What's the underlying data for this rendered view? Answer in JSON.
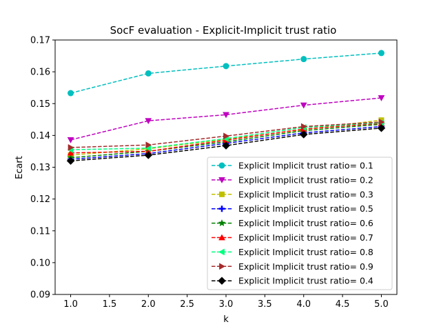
{
  "chart_data": {
    "type": "line",
    "title": "SocF evaluation - Explicit-Implicit trust ratio",
    "xlabel": "k",
    "ylabel": "Ecart",
    "xlim": [
      0.8,
      5.2
    ],
    "ylim": [
      0.09,
      0.17
    ],
    "xticks": [
      "1.0",
      "1.5",
      "2.0",
      "2.5",
      "3.0",
      "3.5",
      "4.0",
      "4.5",
      "5.0"
    ],
    "yticks": [
      "0.09",
      "0.10",
      "0.11",
      "0.12",
      "0.13",
      "0.14",
      "0.15",
      "0.16",
      "0.17"
    ],
    "grid": false,
    "legend_position": "lower-right",
    "x": [
      1.0,
      2.0,
      3.0,
      4.0,
      5.0
    ],
    "series": [
      {
        "name": "Explicit Implicit trust ratio= 0.1",
        "color": "#00bfbf",
        "marker": "circle",
        "values": [
          0.1533,
          0.1595,
          0.1618,
          0.164,
          0.1659
        ]
      },
      {
        "name": "Explicit Implicit trust ratio= 0.2",
        "color": "#bf00bf",
        "marker": "triangle-down",
        "values": [
          0.1386,
          0.1446,
          0.1465,
          0.1495,
          0.1518
        ]
      },
      {
        "name": "Explicit Implicit trust ratio= 0.3",
        "color": "#bfbf00",
        "marker": "square",
        "values": [
          0.1338,
          0.1358,
          0.1388,
          0.1418,
          0.1448
        ]
      },
      {
        "name": "Explicit Implicit trust ratio= 0.5",
        "color": "#0000ff",
        "marker": "plus",
        "values": [
          0.1325,
          0.1343,
          0.1375,
          0.1408,
          0.1428
        ]
      },
      {
        "name": "Explicit Implicit trust ratio= 0.6",
        "color": "#008000",
        "marker": "star",
        "values": [
          0.133,
          0.135,
          0.138,
          0.1415,
          0.1435
        ]
      },
      {
        "name": "Explicit Implicit trust ratio= 0.7",
        "color": "#ff0000",
        "marker": "triangle-up",
        "values": [
          0.1345,
          0.135,
          0.1385,
          0.142,
          0.1438
        ]
      },
      {
        "name": "Explicit Implicit trust ratio= 0.8",
        "color": "#00ff7f",
        "marker": "triangle-left",
        "values": [
          0.1355,
          0.136,
          0.139,
          0.1425,
          0.144
        ]
      },
      {
        "name": "Explicit Implicit trust ratio= 0.9",
        "color": "#a52a2a",
        "marker": "triangle-right",
        "values": [
          0.1362,
          0.137,
          0.1398,
          0.1428,
          0.1442
        ]
      },
      {
        "name": "Explicit Implicit trust ratio= 0.4",
        "color": "#000000",
        "marker": "diamond",
        "values": [
          0.132,
          0.1338,
          0.1368,
          0.1403,
          0.1423
        ]
      }
    ]
  }
}
